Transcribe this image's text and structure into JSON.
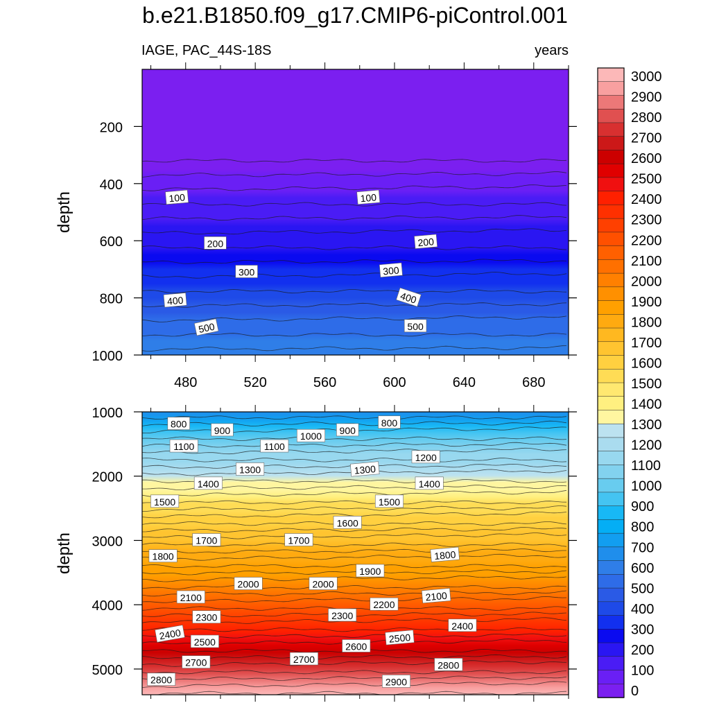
{
  "figure": {
    "title": "b.e21.B1850.f09_g17.CMIP6-piControl.001",
    "variable_region": "IAGE, PAC_44S-18S",
    "units": "years"
  },
  "chart_data": [
    {
      "type": "heatmap",
      "name": "upper-panel",
      "description": "Ideal age contour plot, upper 1000 m",
      "xlabel": "",
      "ylabel": "depth",
      "xlim": [
        455,
        700
      ],
      "ylim": [
        0,
        1000
      ],
      "y_inverted": true,
      "xticks": [
        480,
        520,
        560,
        600,
        640,
        680
      ],
      "yticks": [
        200,
        400,
        600,
        800,
        1000
      ],
      "depth_profile": [
        [
          0,
          0
        ],
        [
          320,
          0
        ],
        [
          440,
          100
        ],
        [
          530,
          150
        ],
        [
          590,
          200
        ],
        [
          660,
          250
        ],
        [
          700,
          300
        ],
        [
          750,
          350
        ],
        [
          790,
          400
        ],
        [
          830,
          450
        ],
        [
          870,
          500
        ],
        [
          920,
          550
        ],
        [
          960,
          580
        ],
        [
          1000,
          600
        ]
      ],
      "contour_labels": [
        {
          "text": "100",
          "x": 475,
          "y": 450,
          "angle": -5
        },
        {
          "text": "100",
          "x": 585,
          "y": 450,
          "angle": -5
        },
        {
          "text": "200",
          "x": 497,
          "y": 610,
          "angle": 0
        },
        {
          "text": "200",
          "x": 618,
          "y": 605,
          "angle": -5
        },
        {
          "text": "300",
          "x": 515,
          "y": 710,
          "angle": 0
        },
        {
          "text": "300",
          "x": 598,
          "y": 705,
          "angle": -5
        },
        {
          "text": "400",
          "x": 474,
          "y": 810,
          "angle": -5
        },
        {
          "text": "400",
          "x": 608,
          "y": 800,
          "angle": 18
        },
        {
          "text": "500",
          "x": 492,
          "y": 905,
          "angle": -12
        },
        {
          "text": "500",
          "x": 612,
          "y": 900,
          "angle": 0
        }
      ]
    },
    {
      "type": "heatmap",
      "name": "lower-panel",
      "description": "Ideal age contour plot, 1000 m to bottom",
      "xlabel": "",
      "ylabel": "depth",
      "xlim": [
        455,
        700
      ],
      "ylim": [
        1000,
        5400
      ],
      "y_inverted": true,
      "yticks": [
        1000,
        2000,
        3000,
        4000,
        5000
      ],
      "depth_profile": [
        [
          1000,
          650
        ],
        [
          1300,
          950
        ],
        [
          1600,
          1100
        ],
        [
          2000,
          1250
        ],
        [
          2300,
          1400
        ],
        [
          2400,
          1500
        ],
        [
          2600,
          1550
        ],
        [
          3000,
          1700
        ],
        [
          3400,
          1850
        ],
        [
          3800,
          2000
        ],
        [
          4200,
          2250
        ],
        [
          4600,
          2500
        ],
        [
          4900,
          2700
        ],
        [
          5200,
          2850
        ],
        [
          5400,
          3000
        ]
      ],
      "contour_labels": [
        {
          "text": "800",
          "x": 476,
          "y": 1190,
          "angle": 0
        },
        {
          "text": "900",
          "x": 501,
          "y": 1290,
          "angle": 0
        },
        {
          "text": "800",
          "x": 597,
          "y": 1170,
          "angle": 0
        },
        {
          "text": "900",
          "x": 573,
          "y": 1290,
          "angle": 0
        },
        {
          "text": "1000",
          "x": 552,
          "y": 1380,
          "angle": 0
        },
        {
          "text": "1100",
          "x": 479,
          "y": 1540,
          "angle": 0
        },
        {
          "text": "1100",
          "x": 531,
          "y": 1540,
          "angle": 0
        },
        {
          "text": "1200",
          "x": 618,
          "y": 1710,
          "angle": 0
        },
        {
          "text": "1300",
          "x": 517,
          "y": 1900,
          "angle": 0
        },
        {
          "text": "1300",
          "x": 583,
          "y": 1900,
          "angle": -5
        },
        {
          "text": "1400",
          "x": 493,
          "y": 2120,
          "angle": 0
        },
        {
          "text": "1400",
          "x": 620,
          "y": 2120,
          "angle": 0
        },
        {
          "text": "1500",
          "x": 468,
          "y": 2400,
          "angle": 0
        },
        {
          "text": "1500",
          "x": 597,
          "y": 2400,
          "angle": 0
        },
        {
          "text": "1600",
          "x": 573,
          "y": 2730,
          "angle": 0
        },
        {
          "text": "1700",
          "x": 492,
          "y": 3000,
          "angle": 0
        },
        {
          "text": "1700",
          "x": 545,
          "y": 3000,
          "angle": 0
        },
        {
          "text": "1800",
          "x": 467,
          "y": 3250,
          "angle": 0
        },
        {
          "text": "1800",
          "x": 629,
          "y": 3230,
          "angle": -5
        },
        {
          "text": "1900",
          "x": 586,
          "y": 3480,
          "angle": 0
        },
        {
          "text": "2000",
          "x": 516,
          "y": 3680,
          "angle": 0
        },
        {
          "text": "2000",
          "x": 559,
          "y": 3680,
          "angle": 0
        },
        {
          "text": "2100",
          "x": 483,
          "y": 3890,
          "angle": 0
        },
        {
          "text": "2100",
          "x": 624,
          "y": 3870,
          "angle": -5
        },
        {
          "text": "2200",
          "x": 594,
          "y": 4000,
          "angle": 0
        },
        {
          "text": "2300",
          "x": 492,
          "y": 4200,
          "angle": 0
        },
        {
          "text": "2300",
          "x": 570,
          "y": 4170,
          "angle": 0
        },
        {
          "text": "2400",
          "x": 471,
          "y": 4460,
          "angle": -10
        },
        {
          "text": "2400",
          "x": 639,
          "y": 4330,
          "angle": 0
        },
        {
          "text": "2500",
          "x": 491,
          "y": 4580,
          "angle": 0
        },
        {
          "text": "2500",
          "x": 603,
          "y": 4520,
          "angle": -5
        },
        {
          "text": "2600",
          "x": 578,
          "y": 4650,
          "angle": 0
        },
        {
          "text": "2700",
          "x": 486,
          "y": 4900,
          "angle": 0
        },
        {
          "text": "2700",
          "x": 548,
          "y": 4850,
          "angle": 0
        },
        {
          "text": "2800",
          "x": 466,
          "y": 5170,
          "angle": 0
        },
        {
          "text": "2800",
          "x": 631,
          "y": 4940,
          "angle": 0
        },
        {
          "text": "2900",
          "x": 601,
          "y": 5200,
          "angle": 0
        }
      ]
    },
    {
      "type": "colorbar",
      "name": "colorbar",
      "min": 0,
      "max": 3000,
      "step": 100,
      "labels": [
        "3000",
        "2900",
        "2800",
        "2700",
        "2600",
        "2500",
        "2400",
        "2300",
        "2200",
        "2100",
        "2000",
        "1900",
        "1800",
        "1700",
        "1600",
        "1500",
        "1400",
        "1300",
        "1200",
        "1100",
        "1000",
        "900",
        "800",
        "700",
        "600",
        "500",
        "400",
        "300",
        "200",
        "100",
        "0"
      ],
      "colors": [
        "#7b1ff0",
        "#6a1ff5",
        "#4a1cf5",
        "#2a16f2",
        "#0a0af0",
        "#1230ef",
        "#1e4ae8",
        "#2a5ae6",
        "#2e6ce8",
        "#2f7ee8",
        "#1f8eec",
        "#129ef0",
        "#04aef5",
        "#18b8f5",
        "#44c4f2",
        "#68ccef",
        "#82d2ef",
        "#98d8ef",
        "#aadcef",
        "#bce2f0",
        "#fff6a0",
        "#fff080",
        "#ffe870",
        "#ffdc55",
        "#ffd040",
        "#ffc430",
        "#ffb820",
        "#ffaa10",
        "#ffa000",
        "#ff9000",
        "#ff8000",
        "#ff7000",
        "#ff6000",
        "#ff5000",
        "#ff4000",
        "#ff3000",
        "#ff2000",
        "#f01010",
        "#e00000",
        "#cc0000",
        "#cc1818",
        "#d83030",
        "#e05050",
        "#ec7878",
        "#f8a0a0",
        "#fcb8b8"
      ],
      "color_thresholds": [
        0,
        100,
        200,
        300,
        400,
        500,
        600,
        700,
        800,
        900,
        1000,
        1100,
        1200,
        1300,
        1400,
        1500,
        1600,
        1700,
        1800,
        1900,
        2000,
        2100,
        2200,
        2300,
        2400,
        2500,
        2600,
        2700,
        2800,
        2900,
        3000
      ]
    }
  ]
}
